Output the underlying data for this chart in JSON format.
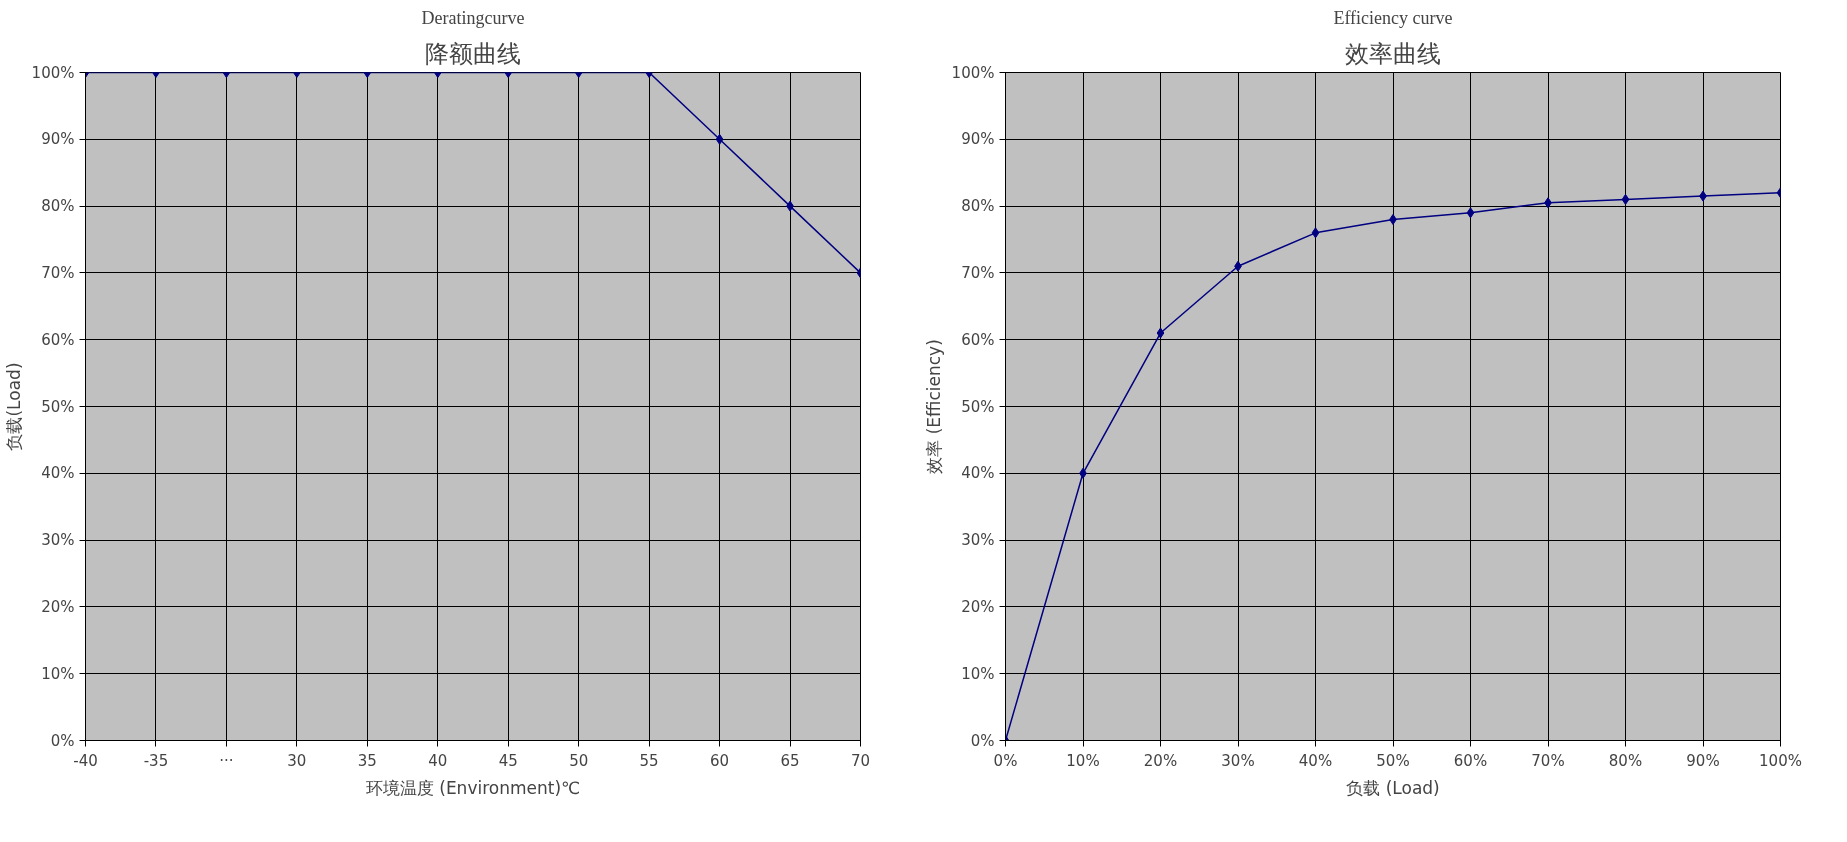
{
  "chart_data": [
    {
      "type": "line",
      "title": "降额曲线",
      "subtitle": "Deratingcurve",
      "xlabel": "环境温度 (Environment)℃",
      "ylabel": "负载(Load)",
      "categories": [
        "-40",
        "-35",
        "···",
        "30",
        "35",
        "40",
        "45",
        "50",
        "55",
        "60",
        "65",
        "70"
      ],
      "series": [
        {
          "color": "#000080",
          "values": [
            100,
            100,
            100,
            100,
            100,
            100,
            100,
            100,
            100,
            90,
            80,
            70
          ]
        }
      ],
      "ylim": [
        0,
        100
      ],
      "yticks": [
        {
          "value": 0,
          "label": "0%"
        },
        {
          "value": 10,
          "label": "10%"
        },
        {
          "value": 20,
          "label": "20%"
        },
        {
          "value": 30,
          "label": "30%"
        },
        {
          "value": 40,
          "label": "40%"
        },
        {
          "value": 50,
          "label": "50%"
        },
        {
          "value": 60,
          "label": "60%"
        },
        {
          "value": 70,
          "label": "70%"
        },
        {
          "value": 80,
          "label": "80%"
        },
        {
          "value": 90,
          "label": "90%"
        },
        {
          "value": 100,
          "label": "100%"
        }
      ],
      "grid": true,
      "marker": "diamond",
      "line_style": "solid"
    },
    {
      "type": "line",
      "title": "效率曲线",
      "subtitle": "Efficiency curve",
      "xlabel": "负载 (Load)",
      "ylabel": "效率 (Efficiency)",
      "categories": [
        "0%",
        "10%",
        "20%",
        "30%",
        "40%",
        "50%",
        "60%",
        "70%",
        "80%",
        "90%",
        "100%"
      ],
      "series": [
        {
          "color": "#000080",
          "values": [
            0,
            40,
            61,
            71,
            76,
            78,
            79,
            80.5,
            81,
            81.5,
            82
          ]
        }
      ],
      "ylim": [
        0,
        100
      ],
      "yticks": [
        {
          "value": 0,
          "label": "0%"
        },
        {
          "value": 10,
          "label": "10%"
        },
        {
          "value": 20,
          "label": "20%"
        },
        {
          "value": 30,
          "label": "30%"
        },
        {
          "value": 40,
          "label": "40%"
        },
        {
          "value": 50,
          "label": "50%"
        },
        {
          "value": 60,
          "label": "60%"
        },
        {
          "value": 70,
          "label": "70%"
        },
        {
          "value": 80,
          "label": "80%"
        },
        {
          "value": 90,
          "label": "90%"
        },
        {
          "value": 100,
          "label": "100%"
        }
      ],
      "grid": true,
      "marker": "diamond",
      "line_style": "solid"
    }
  ]
}
